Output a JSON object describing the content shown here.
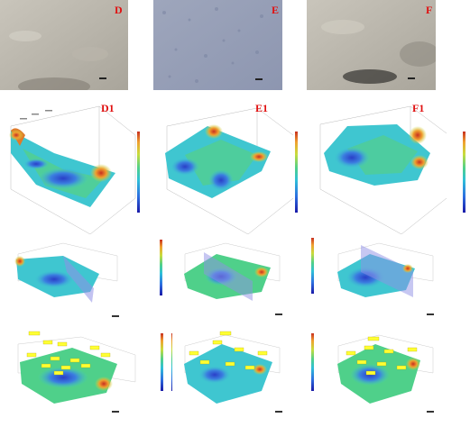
{
  "figure": {
    "micrographs": [
      {
        "label": "D"
      },
      {
        "label": "E"
      },
      {
        "label": "F"
      }
    ],
    "surfaces": [
      {
        "label": "D1"
      },
      {
        "label": "E1"
      },
      {
        "label": "F1"
      }
    ]
  },
  "colors": {
    "label_red": "#e01010",
    "colormap": [
      "#1a1aa8",
      "#2d6fe0",
      "#2fc0d8",
      "#4fd08a",
      "#c8dc3c",
      "#f0a030",
      "#c83020"
    ],
    "plane_violet": "#8f8fe6",
    "annotation_yellow": "#ffff33"
  }
}
